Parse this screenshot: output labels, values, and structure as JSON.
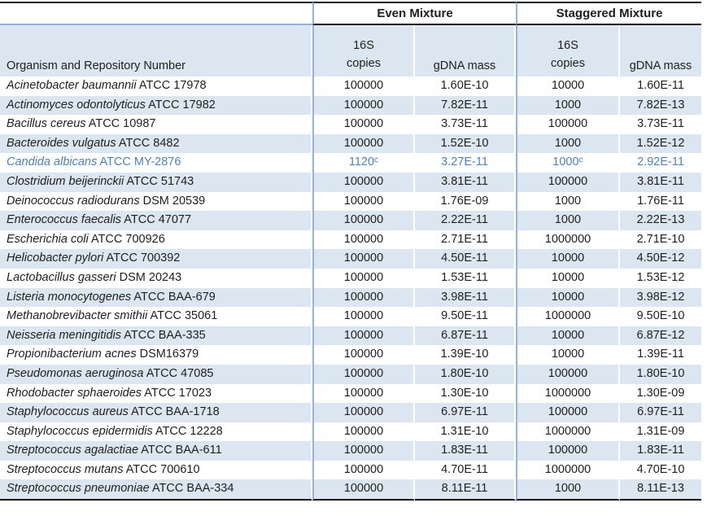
{
  "page": {
    "background": "#ffffff"
  },
  "colors": {
    "stripe_fill": "#DCE6F1",
    "divider_blue": "#95B3D7",
    "rule_dark": "#151515",
    "text": "#1f1f1f",
    "accent_row_text": "#4F81BD"
  },
  "header": {
    "even_group": "Even Mixture",
    "staggered_group": "Staggered Mixture",
    "organism_col": "Organism and Repository Number",
    "copies_col_line1": "16S",
    "copies_col_line2": "copies",
    "gdna_col_even": "gDNA mass",
    "gdna_col_staggered": "gDNA mass"
  },
  "chart_data": {
    "type": "table",
    "group_headers": [
      "Even Mixture",
      "Staggered Mixture"
    ],
    "columns": [
      "Organism and Repository Number",
      "16S copies",
      "gDNA mass",
      "16S copies",
      "gDNA mass"
    ],
    "rows": [
      {
        "name": "Acinetobacter baumannii",
        "id": "ATCC 17978",
        "even_copies": "100000",
        "even_gdna": "1.60E-10",
        "stag_copies": "10000",
        "stag_gdna": "1.60E-11",
        "accent": false
      },
      {
        "name": "Actinomyces odontolyticus",
        "id": "ATCC 17982",
        "even_copies": "100000",
        "even_gdna": "7.82E-11",
        "stag_copies": "1000",
        "stag_gdna": "7.82E-13",
        "accent": false
      },
      {
        "name": "Bacillus cereus",
        "id": "ATCC 10987",
        "even_copies": "100000",
        "even_gdna": "3.73E-11",
        "stag_copies": "100000",
        "stag_gdna": "3.73E-11",
        "accent": false
      },
      {
        "name": "Bacteroides vulgatus",
        "id": "ATCC 8482",
        "even_copies": "100000",
        "even_gdna": "1.52E-10",
        "stag_copies": "1000",
        "stag_gdna": "1.52E-12",
        "accent": false
      },
      {
        "name": "Candida albicans",
        "id": "ATCC MY-2876",
        "even_copies": "1120ᶜ",
        "even_gdna": "3.27E-11",
        "stag_copies": "1000ᶜ",
        "stag_gdna": "2.92E-11",
        "accent": true
      },
      {
        "name": "Clostridium beijerinckii",
        "id": "ATCC 51743",
        "even_copies": "100000",
        "even_gdna": "3.81E-11",
        "stag_copies": "100000",
        "stag_gdna": "3.81E-11",
        "accent": false
      },
      {
        "name": "Deinococcus radiodurans",
        "id": "DSM 20539",
        "even_copies": "100000",
        "even_gdna": "1.76E-09",
        "stag_copies": "1000",
        "stag_gdna": "1.76E-11",
        "accent": false
      },
      {
        "name": "Enterococcus faecalis",
        "id": "ATCC 47077",
        "even_copies": "100000",
        "even_gdna": "2.22E-11",
        "stag_copies": "1000",
        "stag_gdna": "2.22E-13",
        "accent": false
      },
      {
        "name": "Escherichia coli",
        "id": "ATCC 700926",
        "even_copies": "100000",
        "even_gdna": "2.71E-11",
        "stag_copies": "1000000",
        "stag_gdna": "2.71E-10",
        "accent": false
      },
      {
        "name": "Helicobacter pylori",
        "id": "ATCC 700392",
        "even_copies": "100000",
        "even_gdna": "4.50E-11",
        "stag_copies": "10000",
        "stag_gdna": "4.50E-12",
        "accent": false
      },
      {
        "name": "Lactobacillus gasseri",
        "id": "DSM 20243",
        "even_copies": "100000",
        "even_gdna": "1.53E-11",
        "stag_copies": "10000",
        "stag_gdna": "1.53E-12",
        "accent": false
      },
      {
        "name": "Listeria monocytogenes",
        "id": "ATCC BAA-679",
        "even_copies": "100000",
        "even_gdna": "3.98E-11",
        "stag_copies": "10000",
        "stag_gdna": "3.98E-12",
        "accent": false
      },
      {
        "name": "Methanobrevibacter smithii",
        "id": "ATCC 35061",
        "even_copies": "100000",
        "even_gdna": "9.50E-11",
        "stag_copies": "1000000",
        "stag_gdna": "9.50E-10",
        "accent": false
      },
      {
        "name": "Neisseria meningitidis",
        "id": "ATCC BAA-335",
        "even_copies": "100000",
        "even_gdna": "6.87E-11",
        "stag_copies": "10000",
        "stag_gdna": "6.87E-12",
        "accent": false
      },
      {
        "name": "Propionibacterium acnes",
        "id": "DSM16379",
        "even_copies": "100000",
        "even_gdna": "1.39E-10",
        "stag_copies": "10000",
        "stag_gdna": "1.39E-11",
        "accent": false
      },
      {
        "name": "Pseudomonas aeruginosa",
        "id": "ATCC 47085",
        "even_copies": "100000",
        "even_gdna": "1.80E-10",
        "stag_copies": "100000",
        "stag_gdna": "1.80E-10",
        "accent": false
      },
      {
        "name": "Rhodobacter sphaeroides",
        "id": "ATCC 17023",
        "even_copies": "100000",
        "even_gdna": "1.30E-10",
        "stag_copies": "1000000",
        "stag_gdna": "1.30E-09",
        "accent": false
      },
      {
        "name": "Staphylococcus aureus",
        "id": "ATCC BAA-1718",
        "even_copies": "100000",
        "even_gdna": "6.97E-11",
        "stag_copies": "100000",
        "stag_gdna": "6.97E-11",
        "accent": false
      },
      {
        "name": "Staphylococcus epidermidis",
        "id": "ATCC 12228",
        "even_copies": "100000",
        "even_gdna": "1.31E-10",
        "stag_copies": "1000000",
        "stag_gdna": "1.31E-09",
        "accent": false
      },
      {
        "name": "Streptococcus agalactiae",
        "id": "ATCC BAA-611",
        "even_copies": "100000",
        "even_gdna": "1.83E-11",
        "stag_copies": "100000",
        "stag_gdna": "1.83E-11",
        "accent": false
      },
      {
        "name": "Streptococcus mutans",
        "id": "ATCC 700610",
        "even_copies": "100000",
        "even_gdna": "4.70E-11",
        "stag_copies": "1000000",
        "stag_gdna": "4.70E-10",
        "accent": false
      },
      {
        "name": "Streptococcus pneumoniae",
        "id": "ATCC BAA-334",
        "even_copies": "100000",
        "even_gdna": "8.11E-11",
        "stag_copies": "1000",
        "stag_gdna": "8.11E-13",
        "accent": false
      }
    ]
  }
}
